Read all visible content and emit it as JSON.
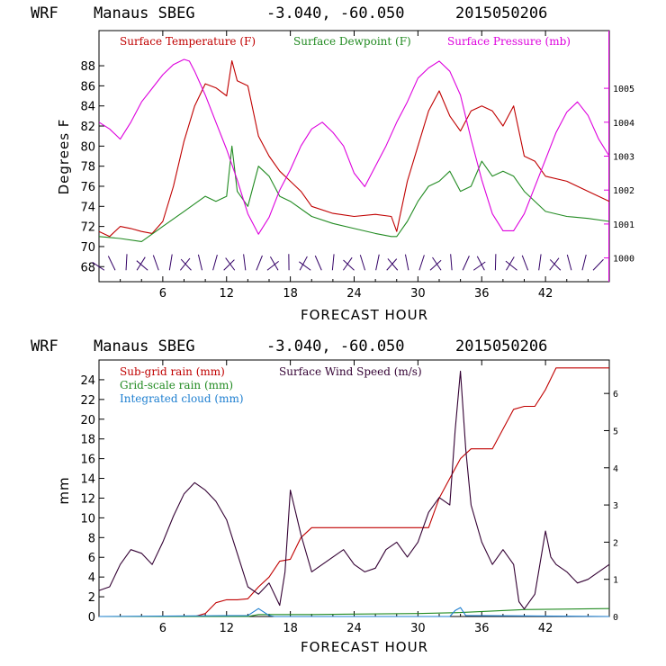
{
  "colors": {
    "temperature": "#c00000",
    "dewpoint": "#228b22",
    "pressure": "#dd00dd",
    "subgrid_rain": "#c00000",
    "gridscale_rain": "#228b22",
    "cloud": "#1e7fd0",
    "wind": "#330033",
    "wind_barbs": "#330066"
  },
  "chart_data": [
    {
      "type": "line",
      "header": {
        "model": "WRF",
        "station": "Manaus SBEG",
        "coords": "-3.040, -60.050",
        "init": "2015050206"
      },
      "xlabel": "FORECAST HOUR",
      "ylabel": "Degrees F",
      "y2label": "",
      "xlim": [
        0,
        48
      ],
      "ylim": [
        66.5,
        91.5
      ],
      "y2lim": [
        999.3,
        1006.7
      ],
      "xticks": [
        "6",
        "12",
        "18",
        "24",
        "30",
        "36",
        "42"
      ],
      "yticks": [
        "68",
        "70",
        "72",
        "74",
        "76",
        "78",
        "80",
        "82",
        "84",
        "86",
        "88"
      ],
      "y2ticks": [
        "1000",
        "1001",
        "1002",
        "1003",
        "1004",
        "1005"
      ],
      "legend": [
        "Surface Temperature (F)",
        "Surface Dewpoint (F)",
        "Surface Pressure (mb)"
      ],
      "series": [
        {
          "name": "Surface Temperature (F)",
          "axis": "left",
          "x": [
            0,
            1,
            2,
            3,
            4,
            5,
            6,
            7,
            8,
            9,
            10,
            11,
            12,
            12.5,
            13,
            14,
            15,
            16,
            17,
            18,
            19,
            20,
            22,
            24,
            26,
            27.5,
            28,
            28.5,
            29,
            30,
            31,
            32,
            33,
            34,
            35,
            36,
            37,
            38,
            39,
            40,
            41,
            42,
            44,
            46,
            48
          ],
          "y": [
            71.5,
            71.0,
            72.0,
            71.8,
            71.5,
            71.3,
            72.5,
            76.0,
            80.5,
            84.0,
            86.2,
            85.8,
            85.0,
            88.5,
            86.5,
            86.0,
            81.0,
            79.0,
            77.5,
            76.5,
            75.5,
            74.0,
            73.3,
            73.0,
            73.2,
            73.0,
            71.5,
            74.0,
            76.5,
            80.0,
            83.5,
            85.5,
            83.0,
            81.5,
            83.5,
            84.0,
            83.5,
            82.0,
            84.0,
            79.0,
            78.5,
            77.0,
            76.5,
            75.5,
            74.5
          ]
        },
        {
          "name": "Surface Dewpoint (F)",
          "axis": "left",
          "x": [
            0,
            2,
            4,
            6,
            8,
            10,
            11,
            12,
            12.5,
            13,
            14,
            15,
            16,
            17,
            18,
            20,
            22,
            24,
            26,
            27.5,
            28,
            29,
            30,
            31,
            32,
            33,
            34,
            35,
            36,
            37,
            38,
            39,
            40,
            42,
            44,
            46,
            48
          ],
          "y": [
            71.0,
            70.8,
            70.5,
            72.0,
            73.5,
            75.0,
            74.5,
            75.0,
            80.0,
            75.5,
            74.0,
            78.0,
            77.0,
            75.0,
            74.5,
            73.0,
            72.3,
            71.8,
            71.3,
            71.0,
            71.0,
            72.5,
            74.5,
            76.0,
            76.5,
            77.5,
            75.5,
            76.0,
            78.5,
            77.0,
            77.5,
            77.0,
            75.5,
            73.5,
            73.0,
            72.8,
            72.5
          ]
        },
        {
          "name": "Surface Pressure (mb)",
          "axis": "right",
          "x": [
            0,
            1,
            2,
            3,
            4,
            5,
            6,
            7,
            8,
            8.5,
            9,
            10,
            11,
            12,
            13,
            14,
            15,
            16,
            17,
            18,
            19,
            20,
            21,
            22,
            23,
            24,
            25,
            26,
            27,
            28,
            29,
            30,
            31,
            32,
            33,
            34,
            35,
            36,
            37,
            38,
            39,
            40,
            41,
            42,
            43,
            44,
            45,
            46,
            47,
            48
          ],
          "y": [
            1004.0,
            1003.8,
            1003.5,
            1004.0,
            1004.6,
            1005.0,
            1005.4,
            1005.7,
            1005.85,
            1005.8,
            1005.5,
            1004.8,
            1004.0,
            1003.2,
            1002.3,
            1001.3,
            1000.7,
            1001.2,
            1002.0,
            1002.6,
            1003.3,
            1003.8,
            1004.0,
            1003.7,
            1003.3,
            1002.5,
            1002.1,
            1002.7,
            1003.3,
            1004.0,
            1004.6,
            1005.3,
            1005.6,
            1005.8,
            1005.5,
            1004.8,
            1003.5,
            1002.3,
            1001.3,
            1000.8,
            1000.8,
            1001.3,
            1002.1,
            1002.9,
            1003.7,
            1004.3,
            1004.6,
            1004.2,
            1003.5,
            1003.0
          ]
        }
      ],
      "wind_barbs": {
        "y": 68,
        "count": 46
      }
    },
    {
      "type": "line",
      "header": {
        "model": "WRF",
        "station": "Manaus SBEG",
        "coords": "-3.040, -60.050",
        "init": "2015050206"
      },
      "xlabel": "FORECAST HOUR",
      "ylabel": "mm",
      "xlim": [
        0,
        48
      ],
      "ylim": [
        0,
        26
      ],
      "y2lim": [
        0,
        6.9
      ],
      "xticks": [
        "6",
        "12",
        "18",
        "24",
        "30",
        "36",
        "42"
      ],
      "yticks": [
        "0",
        "2",
        "4",
        "6",
        "8",
        "10",
        "12",
        "14",
        "16",
        "18",
        "20",
        "22",
        "24"
      ],
      "y2ticks": [
        "0",
        "1",
        "2",
        "3",
        "4",
        "5",
        "6"
      ],
      "legend": [
        "Sub-grid rain (mm)",
        "Surface Wind Speed (m/s)",
        "Grid-scale rain (mm)",
        "Integrated cloud (mm)"
      ],
      "series": [
        {
          "name": "Sub-grid rain (mm)",
          "axis": "left",
          "x": [
            0,
            9,
            10,
            11,
            12,
            13,
            14,
            15,
            16,
            17,
            18,
            19,
            20,
            21,
            22,
            24,
            26,
            28,
            30,
            31,
            32,
            33,
            34,
            35,
            36,
            37,
            38,
            39,
            40,
            41,
            42,
            43,
            44,
            46,
            48
          ],
          "y": [
            0,
            0,
            0.3,
            1.4,
            1.7,
            1.7,
            1.8,
            3.0,
            4.0,
            5.6,
            5.8,
            8.0,
            9.0,
            9.0,
            9.0,
            9.0,
            9.0,
            9.0,
            9.0,
            9.0,
            12.0,
            14.0,
            16.0,
            17.0,
            17.0,
            17.0,
            19.0,
            21.0,
            21.3,
            21.3,
            23.0,
            25.2,
            25.2,
            25.2,
            25.2
          ]
        },
        {
          "name": "Grid-scale rain (mm)",
          "axis": "left",
          "x": [
            0,
            14,
            15,
            16,
            20,
            30,
            34,
            40,
            48
          ],
          "y": [
            0,
            0,
            0.2,
            0.2,
            0.2,
            0.3,
            0.4,
            0.7,
            0.8
          ]
        },
        {
          "name": "Integrated cloud (mm)",
          "axis": "left",
          "x": [
            0,
            14,
            15,
            16,
            16.5,
            33,
            33.5,
            34,
            34.5,
            48
          ],
          "y": [
            0,
            0.1,
            0.8,
            0.1,
            0,
            0,
            0.6,
            0.9,
            0.1,
            0
          ]
        },
        {
          "name": "Surface Wind Speed (m/s)",
          "axis": "right",
          "x": [
            0,
            1,
            2,
            3,
            4,
            5,
            6,
            7,
            8,
            9,
            10,
            11,
            12,
            13,
            14,
            15,
            16,
            17,
            17.5,
            18,
            18.5,
            19,
            20,
            21,
            22,
            23,
            24,
            25,
            26,
            27,
            28,
            29,
            30,
            31,
            32,
            33,
            33.5,
            34,
            34.5,
            35,
            36,
            37,
            38,
            39,
            39.5,
            40,
            41,
            42,
            42.5,
            43,
            44,
            45,
            46,
            47,
            48
          ],
          "y": [
            0.7,
            0.8,
            1.4,
            1.8,
            1.7,
            1.4,
            2.0,
            2.7,
            3.3,
            3.6,
            3.4,
            3.1,
            2.6,
            1.7,
            0.8,
            0.6,
            0.9,
            0.3,
            1.2,
            3.4,
            2.8,
            2.2,
            1.2,
            1.4,
            1.6,
            1.8,
            1.4,
            1.2,
            1.3,
            1.8,
            2.0,
            1.6,
            2.0,
            2.8,
            3.2,
            3.0,
            5.0,
            6.6,
            4.5,
            3.0,
            2.0,
            1.4,
            1.8,
            1.4,
            0.4,
            0.2,
            0.6,
            2.3,
            1.6,
            1.4,
            1.2,
            0.9,
            1.0,
            1.2,
            1.4
          ]
        }
      ]
    }
  ]
}
